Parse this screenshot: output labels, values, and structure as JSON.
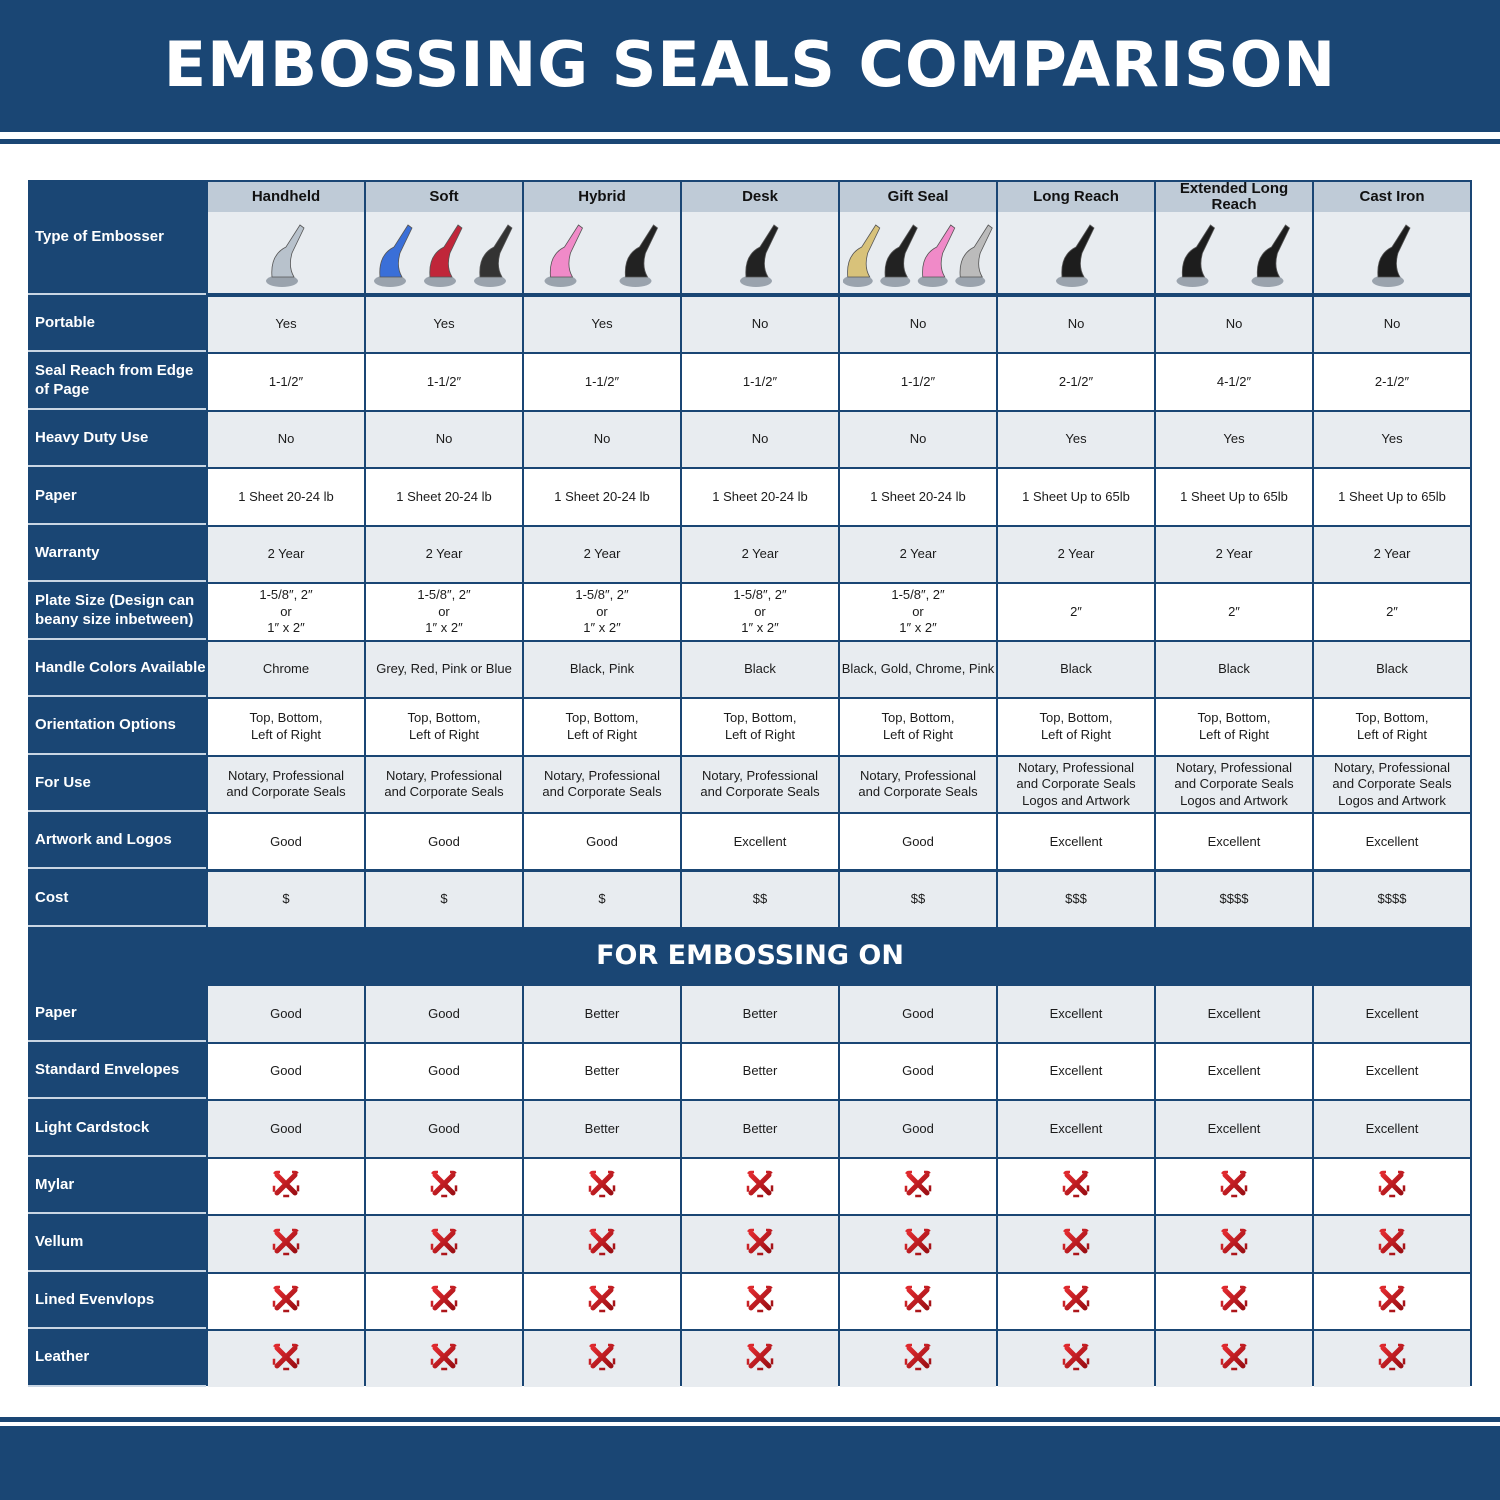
{
  "title": "EMBOSSING SEALS COMPARISON",
  "colors": {
    "brand_blue": "#1a4674",
    "header_grey": "#bfcbd7",
    "row_grey": "#e8ecf0",
    "x_red": "#c4161c"
  },
  "type_label": "Type of Embosser",
  "columns": [
    "Handheld",
    "Soft",
    "Hybrid",
    "Desk",
    "Gift Seal",
    "Long Reach",
    "Extended Long Reach",
    "Cast Iron"
  ],
  "column_images": [
    "chrome handheld embosser",
    "blue, red and black handheld embossers",
    "pink and black hybrid embossers",
    "black desk embosser",
    "gold, black, pink and chrome gift seal embossers",
    "black long reach embosser",
    "two black extended long reach embossers",
    "black cast iron embosser"
  ],
  "rows": [
    {
      "label": "Portable",
      "values": [
        "Yes",
        "Yes",
        "Yes",
        "No",
        "No",
        "No",
        "No",
        "No"
      ]
    },
    {
      "label": "Seal Reach from Edge of Page",
      "values": [
        "1-1/2″",
        "1-1/2″",
        "1-1/2″",
        "1-1/2″",
        "1-1/2″",
        "2-1/2″",
        "4-1/2″",
        "2-1/2″"
      ]
    },
    {
      "label": "Heavy Duty Use",
      "values": [
        "No",
        "No",
        "No",
        "No",
        "No",
        "Yes",
        "Yes",
        "Yes"
      ]
    },
    {
      "label": "Paper",
      "values": [
        "1 Sheet 20-24 lb",
        "1 Sheet 20-24 lb",
        "1 Sheet 20-24 lb",
        "1 Sheet 20-24 lb",
        "1 Sheet 20-24 lb",
        "1 Sheet Up to 65lb",
        "1 Sheet Up to 65lb",
        "1 Sheet Up to 65lb"
      ]
    },
    {
      "label": "Warranty",
      "values": [
        "2 Year",
        "2 Year",
        "2 Year",
        "2 Year",
        "2 Year",
        "2 Year",
        "2 Year",
        "2 Year"
      ]
    },
    {
      "label": "Plate Size (Design can beany size inbetween)",
      "values": [
        "1-5/8″, 2″\nor\n1″ x 2″",
        "1-5/8″, 2″\nor\n1″ x 2″",
        "1-5/8″, 2″\nor\n1″ x 2″",
        "1-5/8″, 2″\nor\n1″ x 2″",
        "1-5/8″, 2″\nor\n1″ x 2″",
        "2″",
        "2″",
        "2″"
      ]
    },
    {
      "label": "Handle Colors Available",
      "values": [
        "Chrome",
        "Grey, Red, Pink or Blue",
        "Black, Pink",
        "Black",
        "Black, Gold, Chrome, Pink",
        "Black",
        "Black",
        "Black"
      ]
    },
    {
      "label": "Orientation Options",
      "values": [
        "Top, Bottom,\nLeft of Right",
        "Top, Bottom,\nLeft of Right",
        "Top, Bottom,\nLeft of Right",
        "Top, Bottom,\nLeft of Right",
        "Top, Bottom,\nLeft of Right",
        "Top, Bottom,\nLeft of Right",
        "Top, Bottom,\nLeft of Right",
        "Top, Bottom,\nLeft of Right"
      ]
    },
    {
      "label": "For Use",
      "values": [
        "Notary, Professional\nand Corporate Seals",
        "Notary, Professional\nand Corporate Seals",
        "Notary, Professional\nand Corporate Seals",
        "Notary, Professional\nand Corporate Seals",
        "Notary, Professional\nand Corporate Seals",
        "Notary, Professional\nand Corporate Seals\nLogos and Artwork",
        "Notary, Professional\nand Corporate Seals\nLogos and Artwork",
        "Notary, Professional\nand Corporate Seals\nLogos and Artwork"
      ]
    },
    {
      "label": "Artwork and Logos",
      "values": [
        "Good",
        "Good",
        "Good",
        "Excellent",
        "Good",
        "Excellent",
        "Excellent",
        "Excellent"
      ]
    },
    {
      "label": "Cost",
      "values": [
        "$",
        "$",
        "$",
        "$$",
        "$$",
        "$$$",
        "$$$$",
        "$$$$"
      ]
    }
  ],
  "section_title": "FOR EMBOSSING ON",
  "section_rows": [
    {
      "label": "Paper",
      "values": [
        "Good",
        "Good",
        "Better",
        "Better",
        "Good",
        "Excellent",
        "Excellent",
        "Excellent"
      ]
    },
    {
      "label": "Standard Envelopes",
      "values": [
        "Good",
        "Good",
        "Better",
        "Better",
        "Good",
        "Excellent",
        "Excellent",
        "Excellent"
      ]
    },
    {
      "label": "Light Cardstock",
      "values": [
        "Good",
        "Good",
        "Better",
        "Better",
        "Good",
        "Excellent",
        "Excellent",
        "Excellent"
      ]
    },
    {
      "label": "Mylar",
      "values": [
        "x-icon",
        "x-icon",
        "x-icon",
        "x-icon",
        "x-icon",
        "x-icon",
        "x-icon",
        "x-icon"
      ]
    },
    {
      "label": "Vellum",
      "values": [
        "x-icon",
        "x-icon",
        "x-icon",
        "x-icon",
        "x-icon",
        "x-icon",
        "x-icon",
        "x-icon"
      ]
    },
    {
      "label": "Lined Evenvlops",
      "values": [
        "x-icon",
        "x-icon",
        "x-icon",
        "x-icon",
        "x-icon",
        "x-icon",
        "x-icon",
        "x-icon"
      ]
    },
    {
      "label": "Leather",
      "values": [
        "x-icon",
        "x-icon",
        "x-icon",
        "x-icon",
        "x-icon",
        "x-icon",
        "x-icon",
        "x-icon"
      ]
    }
  ]
}
